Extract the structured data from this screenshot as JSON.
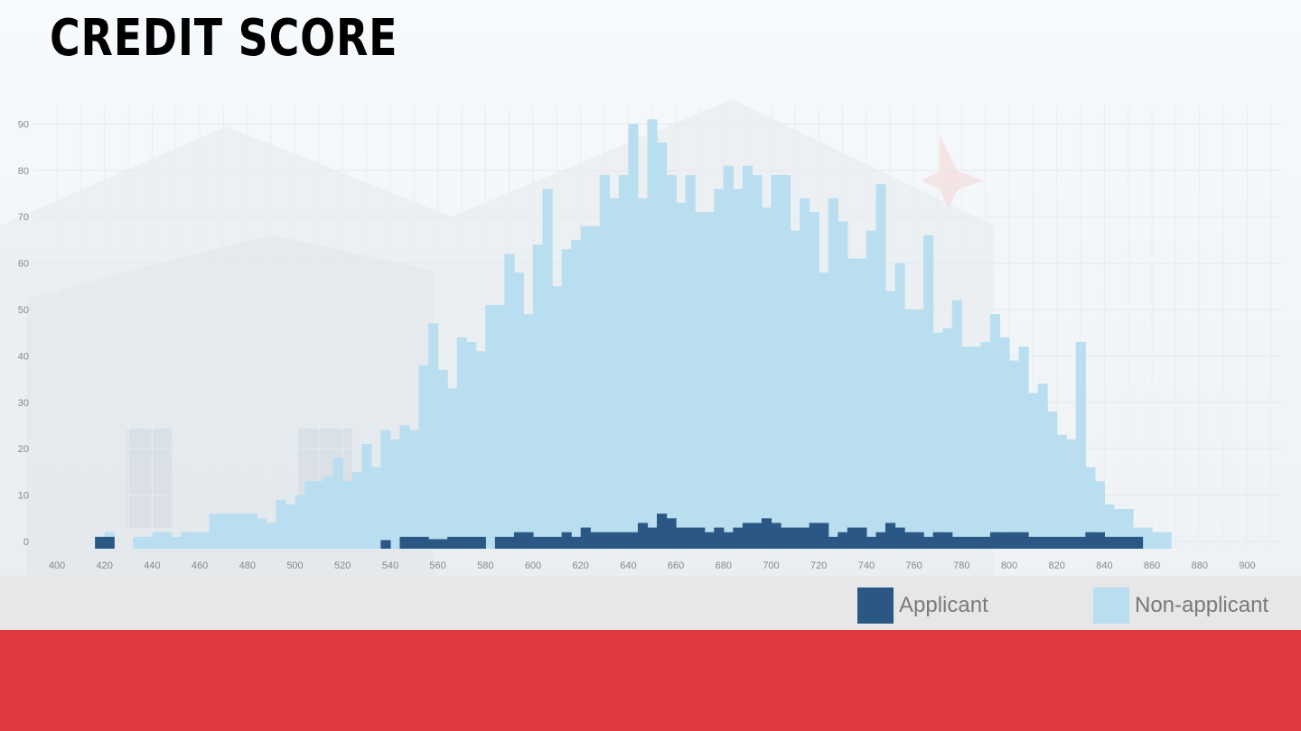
{
  "title": "CREDIT SCORE",
  "legend": [
    {
      "label": "Applicant",
      "color": "#2b5785"
    },
    {
      "label": "Non-applicant",
      "color": "#b9def0"
    }
  ],
  "chart_data": {
    "type": "bar",
    "x_start": 400,
    "bin_width": 4,
    "xlim": [
      398,
      910
    ],
    "ylim": [
      -2,
      95
    ],
    "x_ticks": [
      400,
      420,
      440,
      460,
      480,
      500,
      520,
      540,
      560,
      580,
      600,
      620,
      640,
      660,
      680,
      700,
      720,
      740,
      760,
      780,
      800,
      820,
      840,
      860,
      880,
      900
    ],
    "y_ticks": [
      0,
      10,
      20,
      30,
      40,
      50,
      60,
      70,
      80,
      90
    ],
    "grid": true,
    "series": [
      {
        "name": "Non-applicant",
        "color": "#b9def0",
        "values": [
          0,
          0,
          0,
          0,
          1,
          2,
          0,
          0,
          1,
          1,
          2,
          2,
          1,
          2,
          2,
          2,
          6,
          6,
          6,
          6,
          6,
          5,
          4,
          9,
          8,
          10,
          13,
          13,
          14,
          18,
          13,
          15,
          21,
          16,
          24,
          22,
          25,
          24,
          38,
          47,
          37,
          33,
          44,
          43,
          41,
          51,
          51,
          62,
          58,
          49,
          64,
          76,
          55,
          63,
          65,
          68,
          68,
          79,
          74,
          79,
          90,
          74,
          91,
          86,
          79,
          73,
          79,
          71,
          71,
          76,
          81,
          76,
          81,
          79,
          72,
          79,
          79,
          67,
          74,
          71,
          58,
          74,
          69,
          61,
          61,
          67,
          77,
          54,
          60,
          50,
          50,
          66,
          45,
          46,
          52,
          42,
          42,
          43,
          49,
          44,
          39,
          42,
          32,
          34,
          28,
          23,
          22,
          43,
          16,
          13,
          8,
          7,
          7,
          3,
          3,
          2,
          2
        ]
      },
      {
        "name": "Applicant",
        "color": "#2b5785",
        "values": [
          0,
          0,
          0,
          0,
          1,
          0,
          0,
          0,
          0,
          0,
          0,
          0,
          0,
          0,
          0,
          0,
          0,
          0,
          0,
          0,
          0,
          0,
          0,
          0,
          0,
          0,
          0,
          0,
          0,
          0,
          0,
          0,
          0,
          0,
          0,
          0,
          0,
          0,
          0,
          0,
          0,
          0,
          0,
          0,
          0,
          0,
          0,
          0,
          0,
          0,
          0,
          0,
          0,
          0,
          0,
          0,
          0,
          0,
          0,
          0,
          0,
          0,
          0,
          0,
          0,
          0,
          0,
          0,
          0,
          0,
          0,
          0,
          0,
          0,
          0,
          0,
          0,
          0,
          0,
          0,
          0,
          0,
          0,
          0,
          0,
          0,
          0,
          0,
          0,
          0,
          0,
          0,
          0,
          0,
          0,
          0,
          0,
          0,
          0,
          0,
          0,
          0,
          0,
          0,
          0,
          0,
          0,
          0,
          0,
          0,
          0,
          0,
          0,
          0,
          0,
          0,
          0
        ],
        "points": [
          [
            416,
            1
          ],
          [
            420,
            1
          ],
          [
            536,
            0.3
          ],
          [
            544,
            1
          ],
          [
            548,
            1
          ],
          [
            552,
            1
          ],
          [
            556,
            0.5
          ],
          [
            560,
            0.5
          ],
          [
            564,
            1
          ],
          [
            568,
            1
          ],
          [
            572,
            1
          ],
          [
            576,
            1
          ],
          [
            584,
            1
          ],
          [
            588,
            1
          ],
          [
            592,
            2
          ],
          [
            596,
            2
          ],
          [
            600,
            1
          ],
          [
            604,
            1
          ],
          [
            608,
            1
          ],
          [
            612,
            2
          ],
          [
            616,
            1
          ],
          [
            620,
            3
          ],
          [
            624,
            2
          ],
          [
            628,
            2
          ],
          [
            632,
            2
          ],
          [
            636,
            2
          ],
          [
            640,
            2
          ],
          [
            644,
            4
          ],
          [
            648,
            3
          ],
          [
            652,
            6
          ],
          [
            656,
            5
          ],
          [
            660,
            3
          ],
          [
            664,
            3
          ],
          [
            668,
            3
          ],
          [
            672,
            2
          ],
          [
            676,
            3
          ],
          [
            680,
            2
          ],
          [
            684,
            3
          ],
          [
            688,
            4
          ],
          [
            692,
            4
          ],
          [
            696,
            5
          ],
          [
            700,
            4
          ],
          [
            704,
            3
          ],
          [
            708,
            3
          ],
          [
            712,
            3
          ],
          [
            716,
            4
          ],
          [
            720,
            4
          ],
          [
            724,
            1
          ],
          [
            728,
            2
          ],
          [
            732,
            3
          ],
          [
            736,
            3
          ],
          [
            740,
            1
          ],
          [
            744,
            2
          ],
          [
            748,
            4
          ],
          [
            752,
            3
          ],
          [
            756,
            2
          ],
          [
            760,
            2
          ],
          [
            764,
            1
          ],
          [
            768,
            2
          ],
          [
            772,
            2
          ],
          [
            776,
            1
          ],
          [
            780,
            1
          ],
          [
            784,
            1
          ],
          [
            788,
            1
          ],
          [
            792,
            2
          ],
          [
            796,
            2
          ],
          [
            800,
            2
          ],
          [
            804,
            2
          ],
          [
            808,
            1
          ],
          [
            812,
            1
          ],
          [
            816,
            1
          ],
          [
            820,
            1
          ],
          [
            824,
            1
          ],
          [
            828,
            1
          ],
          [
            832,
            2
          ],
          [
            836,
            2
          ],
          [
            840,
            1
          ],
          [
            844,
            1
          ],
          [
            848,
            1
          ],
          [
            852,
            1
          ]
        ]
      }
    ]
  }
}
